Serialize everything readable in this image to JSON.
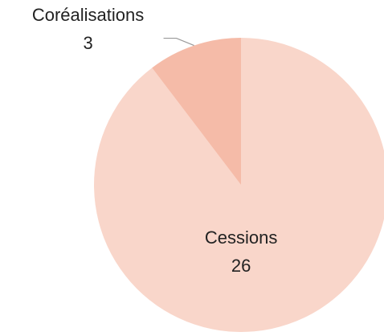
{
  "chart_data": {
    "type": "pie",
    "categories": [
      "Cessions",
      "Coréalisations"
    ],
    "values": [
      26,
      3
    ],
    "colors": [
      "#f9d6ca",
      "#f5bba8"
    ]
  }
}
